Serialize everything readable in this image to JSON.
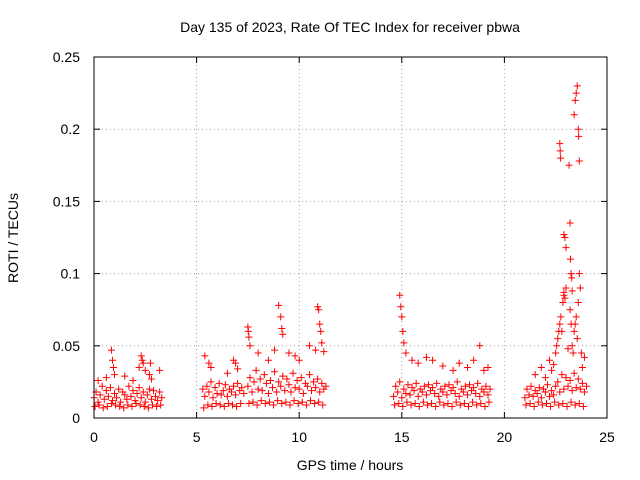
{
  "chart_data": {
    "type": "scatter",
    "title": "Day 135 of 2023, Rate Of TEC Index for receiver pbwa",
    "xlabel": "GPS time / hours",
    "ylabel": "ROTI / TECUs",
    "xlim": [
      0,
      25
    ],
    "ylim": [
      0,
      0.25
    ],
    "x_ticks": [
      0,
      5,
      10,
      15,
      20,
      25
    ],
    "x_tick_labels": [
      "0",
      "5",
      "10",
      "15",
      "20",
      "25"
    ],
    "y_ticks": [
      0,
      0.05,
      0.1,
      0.15,
      0.2,
      0.25
    ],
    "y_tick_labels": [
      "0",
      "0.05",
      "0.1",
      "0.15",
      "0.2",
      "0.25"
    ],
    "grid": true,
    "marker": "plus",
    "color": "#ff0000",
    "series": [
      {
        "x": [
          0.0,
          0.1,
          0.2,
          0.3,
          0.4,
          0.5,
          0.6,
          0.7,
          0.8,
          0.9,
          1.0,
          1.1,
          1.2,
          1.3,
          1.4,
          1.5,
          1.6,
          1.7,
          1.8,
          1.9,
          2.0,
          2.1,
          2.2,
          2.3,
          2.4,
          2.5,
          2.6,
          2.7,
          2.8,
          2.9,
          3.0,
          3.1,
          3.2,
          3.3,
          0.05,
          0.25,
          0.45,
          0.65,
          0.85,
          1.05,
          1.25,
          1.45,
          1.65,
          1.85,
          2.05,
          2.25,
          2.45,
          2.65,
          2.85,
          3.05,
          3.25,
          0.2,
          0.6,
          0.85,
          0.9,
          0.95,
          1.0,
          1.5,
          1.9,
          2.2,
          2.3,
          2.35,
          2.4,
          2.5,
          2.7,
          2.75,
          2.8,
          3.2,
          5.3,
          5.4,
          5.5,
          5.6,
          5.7,
          5.8,
          5.9,
          6.0,
          6.1,
          6.2,
          6.3,
          6.4,
          6.5,
          6.6,
          6.7,
          6.8,
          6.9,
          7.0,
          7.1,
          7.2,
          7.3,
          5.35,
          5.55,
          5.75,
          5.95,
          6.15,
          6.35,
          6.55,
          6.75,
          6.95,
          7.15,
          5.4,
          5.6,
          5.7,
          6.5,
          6.8,
          6.9,
          7.0,
          7.5,
          7.6,
          7.7,
          7.8,
          7.9,
          8.0,
          8.1,
          8.2,
          8.3,
          8.4,
          8.5,
          8.6,
          8.7,
          8.8,
          8.9,
          9.0,
          9.1,
          9.2,
          9.3,
          9.4,
          9.5,
          9.6,
          9.7,
          9.8,
          9.9,
          10.0,
          10.1,
          10.2,
          10.3,
          10.4,
          10.5,
          10.6,
          10.7,
          10.8,
          10.9,
          11.0,
          11.1,
          11.2,
          11.3,
          7.55,
          7.75,
          7.95,
          8.15,
          8.35,
          8.55,
          8.75,
          8.95,
          9.15,
          9.35,
          9.55,
          9.75,
          9.95,
          10.15,
          10.35,
          10.55,
          10.75,
          10.95,
          11.15,
          7.5,
          7.52,
          7.55,
          7.6,
          8.0,
          8.5,
          8.8,
          9.0,
          9.1,
          9.15,
          9.2,
          9.5,
          9.8,
          10.0,
          10.5,
          10.8,
          10.9,
          10.95,
          11.0,
          11.05,
          11.1,
          11.2,
          14.6,
          14.7,
          14.8,
          14.9,
          15.0,
          15.1,
          15.2,
          15.3,
          15.4,
          15.5,
          15.6,
          15.7,
          15.8,
          15.9,
          16.0,
          16.1,
          16.2,
          16.3,
          16.4,
          16.5,
          16.6,
          16.7,
          16.8,
          16.9,
          17.0,
          17.1,
          17.2,
          17.3,
          17.4,
          17.5,
          17.6,
          17.7,
          17.8,
          17.9,
          18.0,
          18.1,
          18.2,
          18.3,
          18.4,
          18.5,
          18.6,
          18.7,
          18.8,
          18.9,
          19.0,
          19.1,
          19.2,
          19.3,
          14.65,
          14.85,
          15.05,
          15.25,
          15.45,
          15.65,
          15.85,
          16.05,
          16.25,
          16.45,
          16.65,
          16.85,
          17.05,
          17.25,
          17.45,
          17.65,
          17.85,
          18.05,
          18.25,
          18.45,
          18.65,
          18.85,
          19.05,
          19.25,
          14.9,
          14.95,
          15.0,
          15.05,
          15.1,
          15.2,
          15.5,
          15.8,
          16.2,
          16.5,
          17.0,
          17.5,
          17.8,
          18.2,
          18.5,
          18.8,
          19.0,
          19.2,
          21.0,
          21.1,
          21.2,
          21.3,
          21.4,
          21.5,
          21.6,
          21.7,
          21.8,
          21.9,
          22.0,
          22.1,
          22.2,
          22.3,
          22.4,
          22.5,
          22.6,
          22.7,
          22.8,
          22.9,
          23.0,
          23.1,
          23.2,
          23.3,
          23.4,
          23.5,
          23.6,
          23.7,
          23.8,
          23.9,
          24.0,
          21.05,
          21.25,
          21.45,
          21.65,
          21.85,
          22.05,
          22.25,
          22.45,
          22.65,
          22.85,
          23.05,
          23.25,
          23.45,
          23.65,
          23.85,
          21.5,
          21.8,
          22.0,
          22.2,
          22.3,
          22.4,
          22.5,
          22.55,
          22.6,
          22.65,
          22.7,
          22.75,
          22.8,
          22.85,
          22.9,
          23.0,
          23.1,
          23.2,
          23.25,
          23.3,
          23.35,
          23.4,
          23.45,
          23.5,
          23.55,
          23.6,
          23.65,
          23.7,
          23.75,
          23.8,
          23.9,
          22.7,
          22.72,
          22.74,
          22.9,
          22.95,
          23.0,
          23.15,
          23.2,
          23.22,
          23.25,
          23.28,
          23.3,
          23.5,
          23.55,
          23.6,
          23.62,
          22.9,
          22.95,
          23.4,
          23.45,
          23.65
        ],
        "y": [
          0.014,
          0.018,
          0.011,
          0.016,
          0.022,
          0.013,
          0.019,
          0.015,
          0.021,
          0.012,
          0.017,
          0.014,
          0.02,
          0.011,
          0.018,
          0.016,
          0.013,
          0.022,
          0.015,
          0.019,
          0.012,
          0.017,
          0.021,
          0.014,
          0.018,
          0.011,
          0.016,
          0.02,
          0.013,
          0.019,
          0.015,
          0.012,
          0.018,
          0.014,
          0.008,
          0.009,
          0.007,
          0.008,
          0.01,
          0.009,
          0.008,
          0.007,
          0.009,
          0.008,
          0.01,
          0.009,
          0.008,
          0.007,
          0.009,
          0.008,
          0.009,
          0.026,
          0.028,
          0.047,
          0.04,
          0.035,
          0.03,
          0.029,
          0.026,
          0.035,
          0.043,
          0.04,
          0.038,
          0.033,
          0.03,
          0.038,
          0.027,
          0.033,
          0.02,
          0.015,
          0.022,
          0.018,
          0.025,
          0.014,
          0.021,
          0.017,
          0.024,
          0.016,
          0.019,
          0.023,
          0.015,
          0.02,
          0.018,
          0.022,
          0.016,
          0.024,
          0.019,
          0.021,
          0.017,
          0.007,
          0.009,
          0.008,
          0.01,
          0.009,
          0.008,
          0.01,
          0.009,
          0.008,
          0.01,
          0.043,
          0.038,
          0.035,
          0.031,
          0.04,
          0.038,
          0.034,
          0.022,
          0.028,
          0.018,
          0.025,
          0.033,
          0.02,
          0.027,
          0.019,
          0.03,
          0.024,
          0.017,
          0.026,
          0.021,
          0.032,
          0.018,
          0.025,
          0.022,
          0.029,
          0.019,
          0.027,
          0.023,
          0.018,
          0.031,
          0.021,
          0.026,
          0.02,
          0.028,
          0.017,
          0.024,
          0.022,
          0.03,
          0.019,
          0.025,
          0.021,
          0.027,
          0.018,
          0.024,
          0.02,
          0.022,
          0.01,
          0.011,
          0.009,
          0.012,
          0.01,
          0.011,
          0.009,
          0.012,
          0.01,
          0.011,
          0.009,
          0.012,
          0.01,
          0.011,
          0.009,
          0.012,
          0.01,
          0.011,
          0.009,
          0.063,
          0.06,
          0.056,
          0.05,
          0.045,
          0.04,
          0.047,
          0.078,
          0.07,
          0.062,
          0.058,
          0.045,
          0.043,
          0.04,
          0.05,
          0.047,
          0.077,
          0.075,
          0.065,
          0.06,
          0.052,
          0.046,
          0.015,
          0.022,
          0.018,
          0.025,
          0.014,
          0.02,
          0.017,
          0.023,
          0.016,
          0.021,
          0.019,
          0.024,
          0.015,
          0.02,
          0.018,
          0.022,
          0.016,
          0.023,
          0.019,
          0.021,
          0.017,
          0.024,
          0.015,
          0.02,
          0.018,
          0.022,
          0.016,
          0.023,
          0.019,
          0.021,
          0.017,
          0.025,
          0.015,
          0.02,
          0.018,
          0.022,
          0.016,
          0.023,
          0.019,
          0.021,
          0.017,
          0.024,
          0.015,
          0.02,
          0.018,
          0.022,
          0.016,
          0.02,
          0.009,
          0.01,
          0.008,
          0.011,
          0.009,
          0.01,
          0.008,
          0.011,
          0.009,
          0.01,
          0.008,
          0.011,
          0.009,
          0.01,
          0.008,
          0.011,
          0.009,
          0.01,
          0.008,
          0.011,
          0.009,
          0.01,
          0.008,
          0.011,
          0.085,
          0.077,
          0.07,
          0.06,
          0.052,
          0.045,
          0.04,
          0.038,
          0.042,
          0.04,
          0.036,
          0.033,
          0.038,
          0.035,
          0.04,
          0.05,
          0.033,
          0.035,
          0.014,
          0.02,
          0.016,
          0.022,
          0.015,
          0.019,
          0.017,
          0.021,
          0.014,
          0.02,
          0.018,
          0.023,
          0.015,
          0.019,
          0.016,
          0.022,
          0.025,
          0.018,
          0.03,
          0.02,
          0.028,
          0.022,
          0.026,
          0.019,
          0.031,
          0.021,
          0.027,
          0.02,
          0.024,
          0.018,
          0.022,
          0.009,
          0.01,
          0.008,
          0.011,
          0.009,
          0.01,
          0.008,
          0.011,
          0.009,
          0.01,
          0.008,
          0.011,
          0.009,
          0.01,
          0.008,
          0.03,
          0.035,
          0.028,
          0.04,
          0.033,
          0.037,
          0.045,
          0.05,
          0.055,
          0.06,
          0.065,
          0.07,
          0.06,
          0.08,
          0.085,
          0.09,
          0.048,
          0.075,
          0.065,
          0.05,
          0.045,
          0.06,
          0.065,
          0.07,
          0.055,
          0.08,
          0.1,
          0.09,
          0.045,
          0.035,
          0.042,
          0.19,
          0.185,
          0.18,
          0.127,
          0.125,
          0.118,
          0.175,
          0.135,
          0.11,
          0.1,
          0.097,
          0.088,
          0.225,
          0.23,
          0.2,
          0.195,
          0.087,
          0.083,
          0.21,
          0.22,
          0.178
        ]
      }
    ]
  }
}
